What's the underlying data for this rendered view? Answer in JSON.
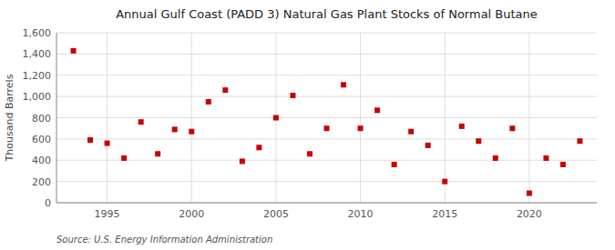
{
  "chart_data": {
    "type": "scatter",
    "title": "Annual Gulf Coast (PADD 3) Natural Gas Plant Stocks of Normal Butane",
    "y_label": "Thousand Barrels",
    "annotations": [
      "Source: U.S. Energy Information Administration"
    ],
    "x": [
      1993,
      1994,
      1995,
      1996,
      1997,
      1998,
      1999,
      2000,
      2001,
      2002,
      2003,
      2004,
      2005,
      2006,
      2007,
      2008,
      2009,
      2010,
      2011,
      2012,
      2013,
      2014,
      2015,
      2016,
      2017,
      2018,
      2019,
      2020,
      2021,
      2022,
      2023
    ],
    "values": [
      1430,
      590,
      560,
      420,
      760,
      460,
      690,
      670,
      950,
      1060,
      390,
      520,
      800,
      1010,
      460,
      700,
      1110,
      700,
      870,
      360,
      670,
      540,
      200,
      720,
      580,
      420,
      700,
      90,
      420,
      360,
      580
    ],
    "color": "#cc0000",
    "marker": "square",
    "grid": true,
    "xlim": [
      1992.0,
      2024.0
    ],
    "xticks": [
      1995,
      2000,
      2005,
      2010,
      2015,
      2020
    ],
    "ylim": [
      0,
      1600
    ],
    "yticks": [
      0,
      200,
      400,
      600,
      800,
      {
        "value": 1000,
        "label": "1,000"
      },
      {
        "value": 1200,
        "label": "1,200"
      },
      {
        "value": 1400,
        "label": "1,400"
      },
      {
        "value": 1600,
        "label": "1,600"
      }
    ]
  }
}
